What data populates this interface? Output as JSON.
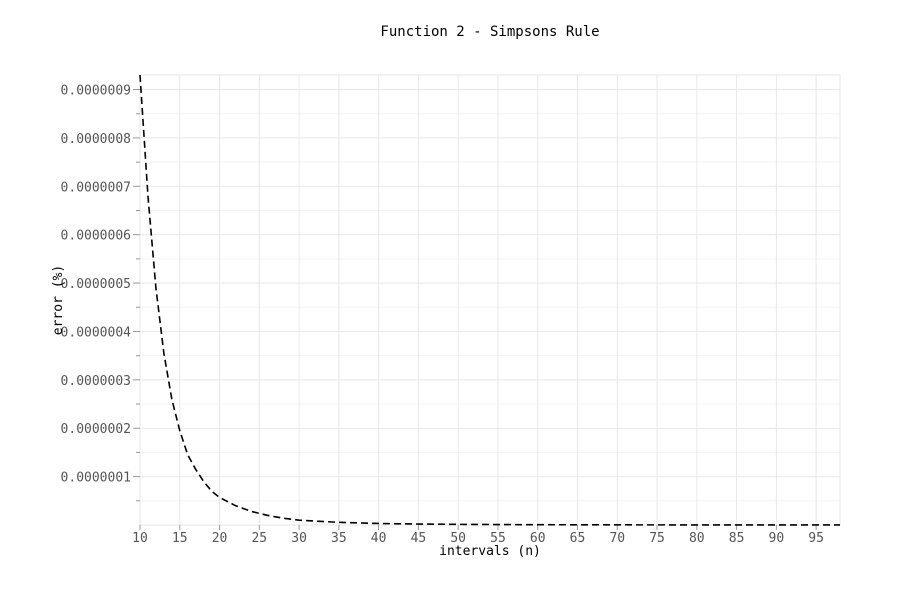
{
  "chart_data": {
    "type": "line",
    "title": "Function 2 - Simpsons Rule",
    "xlabel": "intervals (n)",
    "ylabel": "error (%)",
    "xlim": [
      10,
      98
    ],
    "ylim": [
      0,
      9.3e-07
    ],
    "x_ticks": [
      10,
      15,
      20,
      25,
      30,
      35,
      40,
      45,
      50,
      55,
      60,
      65,
      70,
      75,
      80,
      85,
      90,
      95
    ],
    "x_tick_labels": [
      "10",
      "15",
      "20",
      "25",
      "30",
      "35",
      "40",
      "45",
      "50",
      "55",
      "60",
      "65",
      "70",
      "75",
      "80",
      "85",
      "90",
      "95"
    ],
    "y_ticks": [
      1e-07,
      2e-07,
      3e-07,
      4e-07,
      5e-07,
      6e-07,
      7e-07,
      8e-07,
      9e-07
    ],
    "y_tick_labels": [
      "0.0000001",
      "0.0000002",
      "0.0000003",
      "0.0000004",
      "0.0000005",
      "0.0000006",
      "0.0000007",
      "0.0000008",
      "0.0000009"
    ],
    "grid": true,
    "line_style": "dashed",
    "line_color": "#000000",
    "series": [
      {
        "x": [
          10,
          11,
          12,
          13,
          14,
          15,
          16,
          17,
          18,
          19,
          20,
          22,
          24,
          26,
          28,
          30,
          35,
          40,
          45,
          50,
          60,
          70,
          80,
          90,
          98
        ],
        "values": [
          9.3e-07,
          6.8e-07,
          4.9e-07,
          3.55e-07,
          2.6e-07,
          1.95e-07,
          1.45e-07,
          1.15e-07,
          9e-08,
          7e-08,
          5.7e-08,
          4e-08,
          2.8e-08,
          2e-08,
          1.4e-08,
          1e-08,
          5.5e-09,
          3.2e-09,
          2e-09,
          1.3e-09,
          6e-10,
          3e-10,
          1.8e-10,
          1e-10,
          7e-11
        ]
      }
    ]
  }
}
